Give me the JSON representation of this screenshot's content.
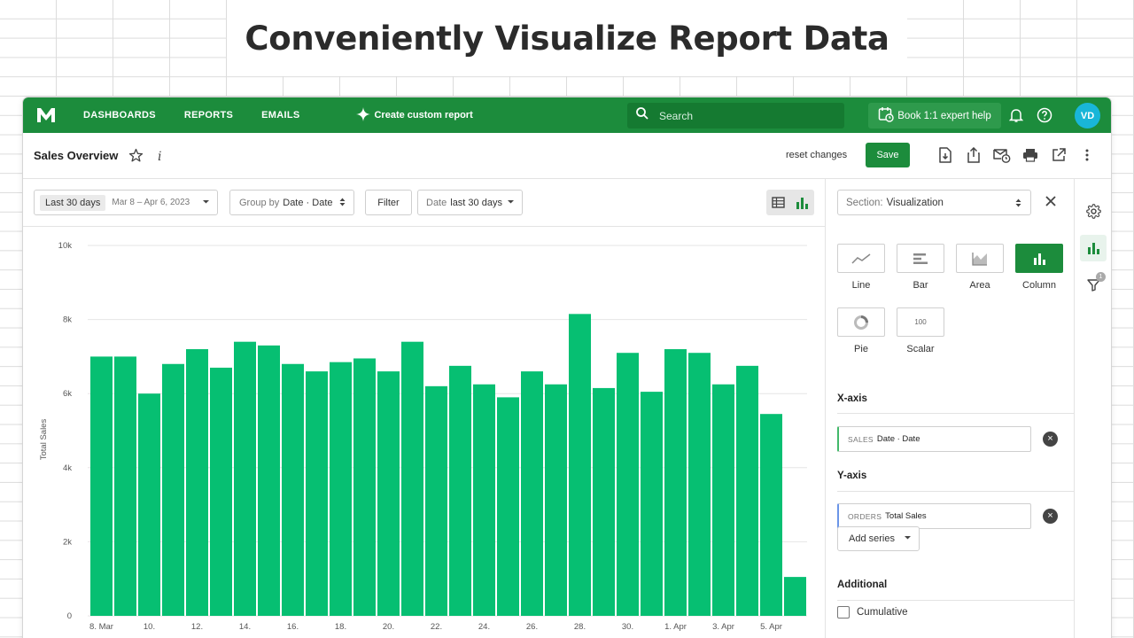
{
  "headline": "Conveniently Visualize Report Data",
  "topnav": {
    "logo": "M",
    "items": [
      "DASHBOARDS",
      "REPORTS",
      "EMAILS"
    ],
    "create_report": "Create custom report",
    "search_placeholder": "Search",
    "book_help": "Book 1:1 expert help",
    "avatar": "VD"
  },
  "titlebar": {
    "title": "Sales Overview",
    "reset": "reset changes",
    "save": "Save"
  },
  "controls": {
    "date_range_pill": "Last 30 days",
    "date_range_value": "Mar 8 – Apr 6, 2023",
    "group_by_label": "Group by",
    "group_by_value": "Date · Date",
    "filter": "Filter",
    "date_filter_label": "Date",
    "date_filter_value": "last 30 days"
  },
  "settings": {
    "section_label": "Section:",
    "section_value": "Visualization",
    "viz_types": [
      {
        "label": "Line",
        "icon": "line-chart-icon",
        "active": false
      },
      {
        "label": "Bar",
        "icon": "bar-chart-icon",
        "active": false
      },
      {
        "label": "Area",
        "icon": "area-chart-icon",
        "active": false
      },
      {
        "label": "Column",
        "icon": "column-chart-icon",
        "active": true
      },
      {
        "label": "Pie",
        "icon": "pie-chart-icon",
        "active": false
      },
      {
        "label": "Scalar",
        "icon": "scalar-icon",
        "active": false,
        "icon_text": "100"
      }
    ],
    "x_axis_heading": "X-axis",
    "x_axis_tag": "SALES",
    "x_axis_value": "Date · Date",
    "y_axis_heading": "Y-axis",
    "y_axis_tag": "ORDERS",
    "y_axis_value": "Total Sales",
    "add_series": "Add series",
    "additional_heading": "Additional",
    "cumulative_label": "Cumulative"
  },
  "rail": {
    "filter_badge": "1"
  },
  "colors": {
    "brand_green": "#1c8c3c",
    "bar_green": "#06bf72",
    "avatar": "#19b6d8"
  },
  "chart_data": {
    "type": "bar",
    "title": "",
    "xlabel": "",
    "ylabel": "Total Sales",
    "ylim": [
      0,
      10000
    ],
    "yticks": [
      0,
      2000,
      4000,
      6000,
      8000,
      10000
    ],
    "ytick_labels": [
      "0",
      "2k",
      "4k",
      "6k",
      "8k",
      "10k"
    ],
    "categories": [
      "8. Mar",
      "9. Mar",
      "10. Mar",
      "11. Mar",
      "12. Mar",
      "13. Mar",
      "14. Mar",
      "15. Mar",
      "16. Mar",
      "17. Mar",
      "18. Mar",
      "19. Mar",
      "20. Mar",
      "21. Mar",
      "22. Mar",
      "23. Mar",
      "24. Mar",
      "25. Mar",
      "26. Mar",
      "27. Mar",
      "28. Mar",
      "29. Mar",
      "30. Mar",
      "31. Mar",
      "1. Apr",
      "2. Apr",
      "3. Apr",
      "4. Apr",
      "5. Apr",
      "6. Apr"
    ],
    "xtick_labels": [
      "8. Mar",
      "",
      "10.",
      "",
      "12.",
      "",
      "14.",
      "",
      "16.",
      "",
      "18.",
      "",
      "20.",
      "",
      "22.",
      "",
      "24.",
      "",
      "26.",
      "",
      "28.",
      "",
      "30.",
      "",
      "1. Apr",
      "",
      "3. Apr",
      "",
      "5. Apr",
      ""
    ],
    "values": [
      7000,
      7000,
      6000,
      6800,
      7200,
      6700,
      7400,
      7300,
      6800,
      6600,
      6850,
      6950,
      6600,
      7400,
      6200,
      6750,
      6250,
      5900,
      6600,
      6250,
      8150,
      6150,
      7100,
      6050,
      7200,
      7100,
      6250,
      6750,
      5450,
      1050
    ],
    "grid": true,
    "legend": "none"
  }
}
